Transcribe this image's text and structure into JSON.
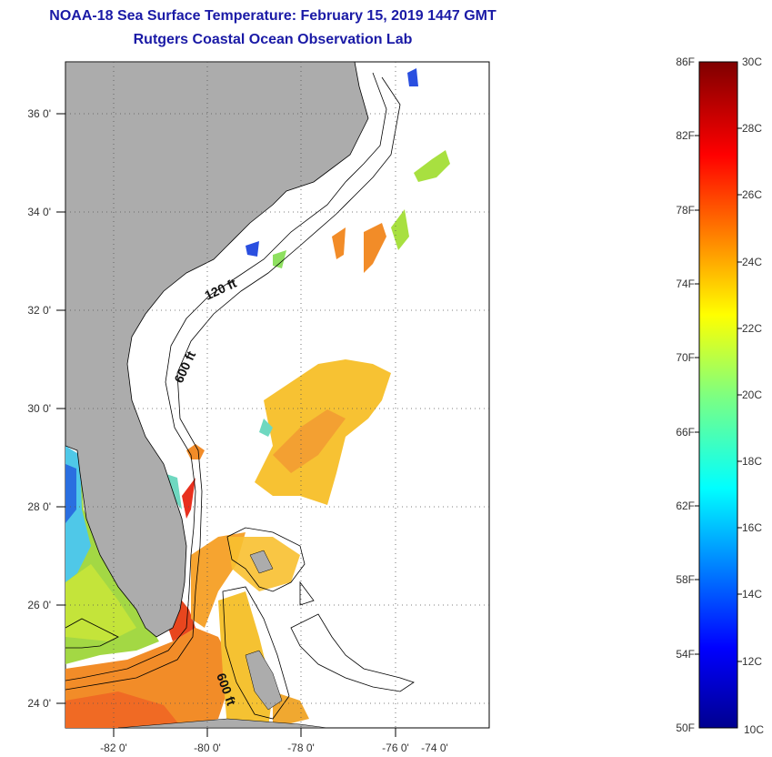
{
  "title_line1": "NOAA-18 Sea Surface Temperature:  February 15, 2019 1447 GMT",
  "title_line2": "Rutgers Coastal Ocean Observation Lab",
  "map": {
    "lon_labels": [
      "-82 0'",
      "-80 0'",
      "-78 0'",
      "-76 0'",
      "-74 0'"
    ],
    "lon_values": [
      -82,
      -80,
      -78,
      -76,
      -74
    ],
    "lat_labels": [
      "24 0'",
      "26 0'",
      "28 0'",
      "30 0'",
      "32 0'",
      "34 0'",
      "36 0'"
    ],
    "lat_values": [
      24,
      26,
      28,
      30,
      32,
      34,
      36
    ],
    "lon_range": [
      -83,
      -74
    ],
    "lat_range": [
      23,
      37
    ],
    "contour_labels": [
      "120 ft",
      "600 ft",
      "600 ft"
    ],
    "colors": {
      "land": "#acacac",
      "water": "#ffffff",
      "coast": "#000000"
    }
  },
  "colorbar": {
    "f_labels": [
      "86F",
      "82F",
      "78F",
      "74F",
      "70F",
      "66F",
      "62F",
      "58F",
      "54F",
      "50F"
    ],
    "c_labels": [
      "30C",
      "28C",
      "26C",
      "24C",
      "22C",
      "20C",
      "18C",
      "16C",
      "14C",
      "12C",
      "10C"
    ],
    "c_range": [
      10,
      30
    ]
  }
}
